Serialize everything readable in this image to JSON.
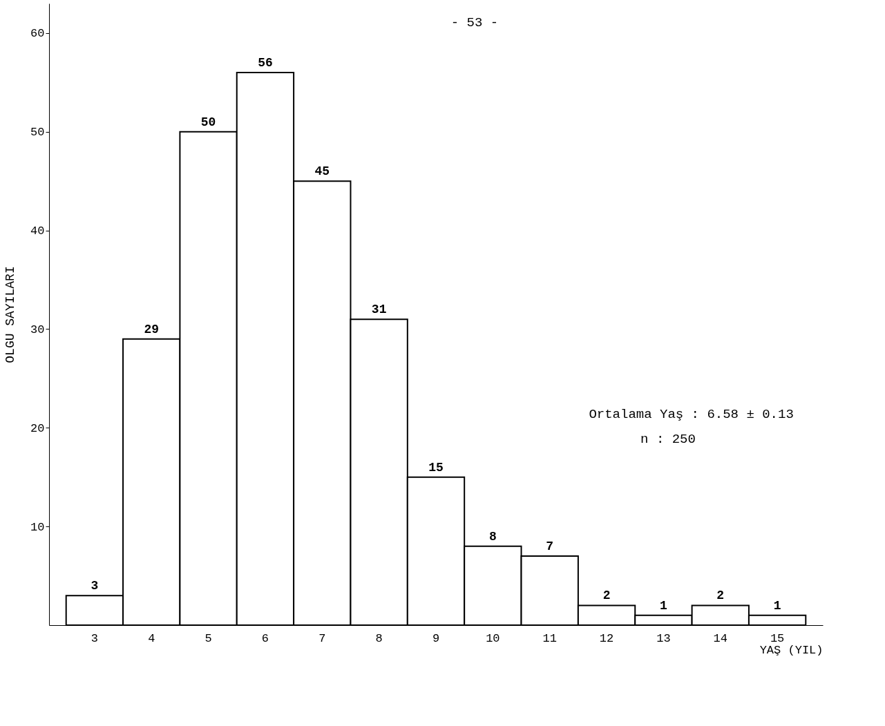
{
  "chart_data": {
    "type": "bar",
    "xlabel": "YAŞ (YIL)",
    "ylabel": "OLGU SAYILARI",
    "categories": [
      "3",
      "4",
      "5",
      "6",
      "7",
      "8",
      "9",
      "10",
      "11",
      "12",
      "13",
      "14",
      "15"
    ],
    "values": [
      3,
      29,
      50,
      56,
      45,
      31,
      15,
      8,
      7,
      2,
      1,
      2,
      1
    ],
    "color": "#ffffff",
    "ylim": [
      0,
      63
    ],
    "yticks": [
      10,
      20,
      30,
      40,
      50,
      60
    ],
    "grid": false,
    "data_labels": true,
    "annotations": [
      "- 53 -",
      "Ortalama Yaş : 6.58 ± 0.13",
      "n : 250"
    ]
  }
}
